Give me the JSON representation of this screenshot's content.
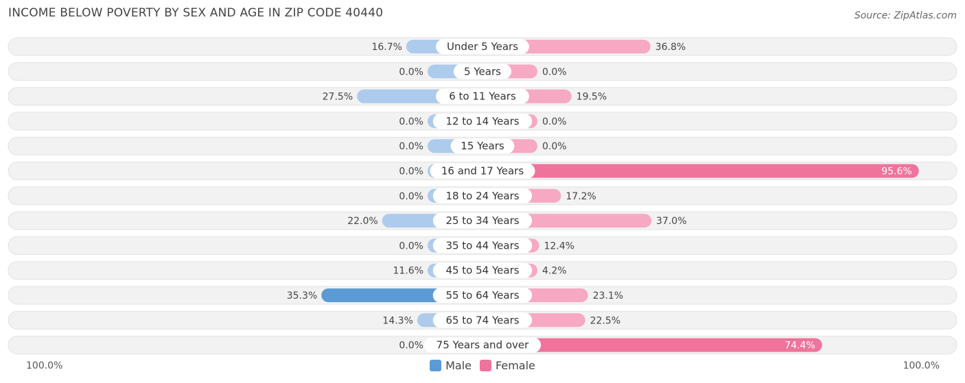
{
  "title": "INCOME BELOW POVERTY BY SEX AND AGE IN ZIP CODE 40440",
  "source": "Source: ZipAtlas.com",
  "colors": {
    "male": "#5b9bd5",
    "male_light": "#adcbec",
    "female": "#f0739b",
    "female_light": "#f7a8c2",
    "row_bg": "#f2f2f2"
  },
  "chart_data": {
    "type": "bar",
    "orientation": "horizontal-diverging",
    "categories": [
      "Under 5 Years",
      "5 Years",
      "6 to 11 Years",
      "12 to 14 Years",
      "15 Years",
      "16 and 17 Years",
      "18 to 24 Years",
      "25 to 34 Years",
      "35 to 44 Years",
      "45 to 54 Years",
      "55 to 64 Years",
      "65 to 74 Years",
      "75 Years and over"
    ],
    "series": [
      {
        "name": "Male",
        "values": [
          16.7,
          0.0,
          27.5,
          0.0,
          0.0,
          0.0,
          0.0,
          22.0,
          0.0,
          11.6,
          35.3,
          14.3,
          0.0
        ],
        "labels": [
          "16.7%",
          "0.0%",
          "27.5%",
          "0.0%",
          "0.0%",
          "0.0%",
          "0.0%",
          "22.0%",
          "0.0%",
          "11.6%",
          "35.3%",
          "14.3%",
          "0.0%"
        ]
      },
      {
        "name": "Female",
        "values": [
          36.8,
          0.0,
          19.5,
          0.0,
          0.0,
          95.6,
          17.2,
          37.0,
          12.4,
          4.2,
          23.1,
          22.5,
          74.4
        ],
        "labels": [
          "36.8%",
          "0.0%",
          "19.5%",
          "0.0%",
          "0.0%",
          "95.6%",
          "17.2%",
          "37.0%",
          "12.4%",
          "4.2%",
          "23.1%",
          "22.5%",
          "74.4%"
        ]
      }
    ],
    "xlim": [
      -100,
      100
    ],
    "axis_left_label": "100.0%",
    "axis_right_label": "100.0%",
    "legend": [
      "Male",
      "Female"
    ],
    "legend_position": "bottom-center"
  }
}
